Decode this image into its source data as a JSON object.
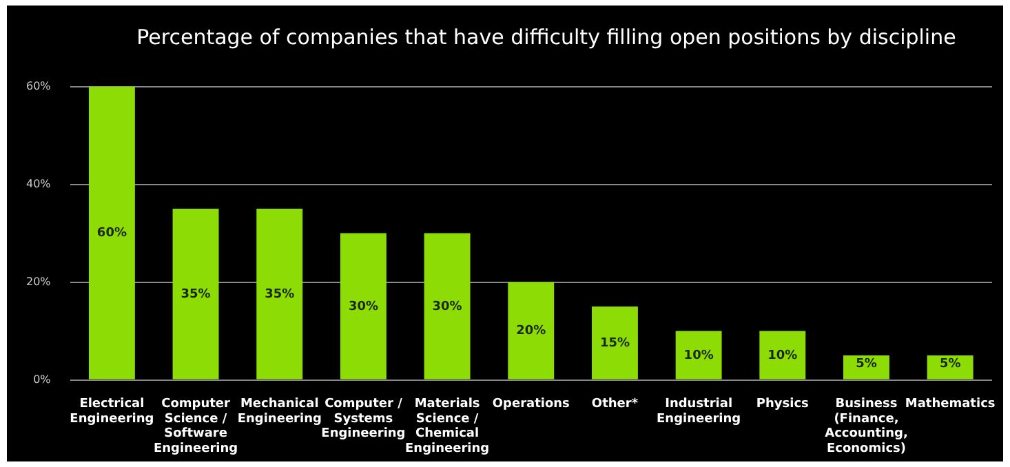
{
  "chart_data": {
    "type": "bar",
    "title": "Percentage of companies that have difficulty filling open positions by discipline",
    "categories": [
      "Electrical Engineering",
      "Computer Science / Software Engineering",
      "Mechanical Engineering",
      "Computer / Systems Engineering",
      "Materials Science / Chemical Engineering",
      "Operations",
      "Other*",
      "Industrial Engineering",
      "Physics",
      "Business (Finance, Accounting, Economics)",
      "Mathematics"
    ],
    "values": [
      60,
      35,
      35,
      30,
      30,
      20,
      15,
      10,
      10,
      5,
      5
    ],
    "value_labels": [
      "60%",
      "35%",
      "35%",
      "30%",
      "30%",
      "20%",
      "15%",
      "10%",
      "10%",
      "5%",
      "5%"
    ],
    "color": "#8ddc06",
    "ylim": [
      0,
      60
    ],
    "yticks": [
      {
        "value": 0,
        "label": "0%"
      },
      {
        "value": 20,
        "label": "20%"
      },
      {
        "value": 40,
        "label": "40%"
      },
      {
        "value": 60,
        "label": "60%"
      }
    ],
    "grid": "y"
  }
}
